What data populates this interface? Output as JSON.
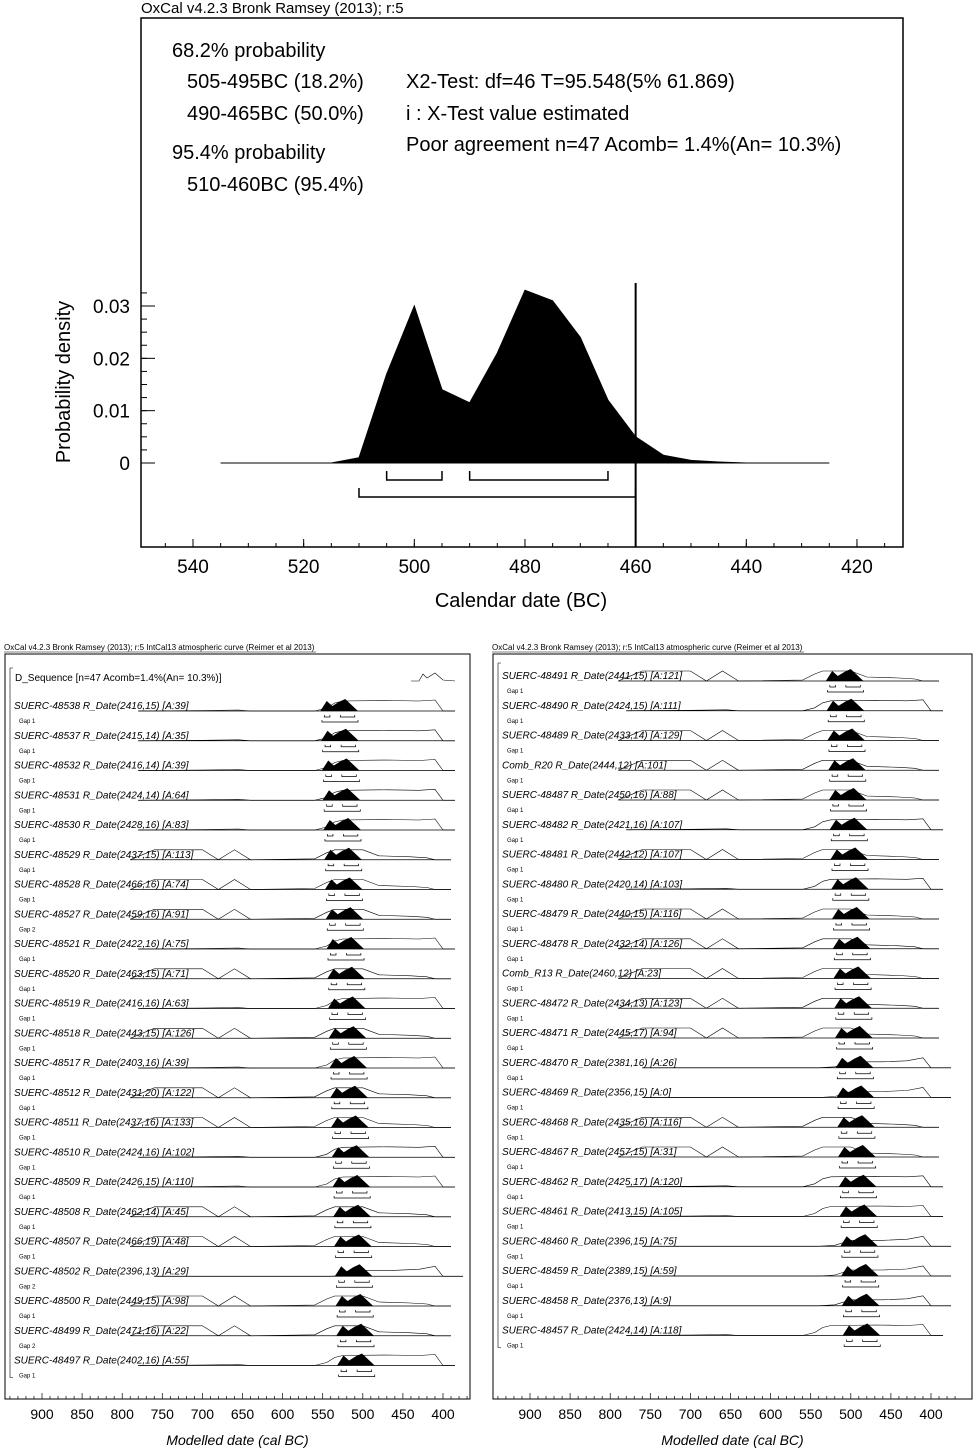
{
  "top_chart": {
    "title": "OxCal v4.2.3 Bronk Ramsey (2013); r:5",
    "prob68_label": "68.2% probability",
    "prob68_ranges": [
      "505-495BC (18.2%)",
      "490-465BC (50.0%)"
    ],
    "prob95_label": "95.4% probability",
    "prob95_ranges": [
      "510-460BC (95.4%)"
    ],
    "stats": [
      "X2-Test: df=46 T=95.548(5% 61.869)",
      "i : X-Test value estimated",
      "Poor agreement n=47 Acomb= 1.4%(An= 10.3%)"
    ],
    "xlabel": "Calendar date (BC)",
    "ylabel": "Probability density",
    "xticks": [
      "540",
      "520",
      "500",
      "480",
      "460",
      "440",
      "420"
    ],
    "yticks": [
      "0",
      "0.01",
      "0.02",
      "0.03"
    ]
  },
  "chart_data": [
    {
      "type": "area",
      "title": "OxCal v4.2.3 Bronk Ramsey (2013); r:5",
      "xlabel": "Calendar date (BC)",
      "ylabel": "Probability density",
      "xlim": [
        550,
        410
      ],
      "ylim": [
        0,
        0.035
      ],
      "x": [
        535,
        515,
        510,
        505,
        500,
        495,
        490,
        485,
        480,
        475,
        470,
        465,
        460,
        455,
        450,
        445,
        440,
        430
      ],
      "y": [
        0,
        0,
        0.001,
        0.017,
        0.03,
        0.014,
        0.0115,
        0.021,
        0.033,
        0.031,
        0.024,
        0.012,
        0.005,
        0.0015,
        0.0005,
        0.0002,
        0,
        0
      ],
      "ranges_68": [
        [
          505,
          495
        ],
        [
          490,
          465
        ]
      ],
      "ranges_95": [
        [
          510,
          460
        ]
      ],
      "marker_line": 460
    },
    {
      "type": "multiplot",
      "panel": "left",
      "header": "OxCal v4.2.3 Bronk Ramsey (2013); r:5 IntCal13 atmospheric curve (Reimer et al 2013)",
      "xlabel": "Modelled date (cal BC)",
      "xticks": [
        "900",
        "850",
        "800",
        "750",
        "700",
        "650",
        "600",
        "550",
        "500",
        "450",
        "400"
      ],
      "sequence_label": "D_Sequence [n=47 Acomb=1.4%(An= 10.3%)]",
      "rows": [
        {
          "label": "SUERC-48538 R_Date(2416,15) [A:39]",
          "gap": "Gap 1"
        },
        {
          "label": "SUERC-48537 R_Date(2415,14) [A:35]",
          "gap": "Gap 1"
        },
        {
          "label": "SUERC-48532 R_Date(2416,14) [A:39]",
          "gap": "Gap 1"
        },
        {
          "label": "SUERC-48531 R_Date(2424,14) [A:64]",
          "gap": "Gap 1"
        },
        {
          "label": "SUERC-48530 R_Date(2428,16) [A:83]",
          "gap": "Gap 1"
        },
        {
          "label": "SUERC-48529 R_Date(2437,15) [A:113]",
          "gap": "Gap 1"
        },
        {
          "label": "SUERC-48528 R_Date(2466,16) [A:74]",
          "gap": "Gap 1"
        },
        {
          "label": "SUERC-48527 R_Date(2459,16) [A:91]",
          "gap": "Gap 2"
        },
        {
          "label": "SUERC-48521 R_Date(2422,16) [A:75]",
          "gap": "Gap 1"
        },
        {
          "label": "SUERC-48520 R_Date(2463,15) [A:71]",
          "gap": "Gap 1"
        },
        {
          "label": "SUERC-48519 R_Date(2416,16) [A:63]",
          "gap": "Gap 1"
        },
        {
          "label": "SUERC-48518 R_Date(2443,15) [A:126]",
          "gap": "Gap 1"
        },
        {
          "label": "SUERC-48517 R_Date(2403,16) [A:39]",
          "gap": "Gap 1"
        },
        {
          "label": "SUERC-48512 R_Date(2431,20) [A:122]",
          "gap": "Gap 1"
        },
        {
          "label": "SUERC-48511 R_Date(2437,16) [A:133]",
          "gap": "Gap 1"
        },
        {
          "label": "SUERC-48510 R_Date(2424,16) [A:102]",
          "gap": "Gap 1"
        },
        {
          "label": "SUERC-48509 R_Date(2426,15) [A:110]",
          "gap": "Gap 1"
        },
        {
          "label": "SUERC-48508 R_Date(2462,14) [A:45]",
          "gap": "Gap 1"
        },
        {
          "label": "SUERC-48507 R_Date(2466,19) [A:48]",
          "gap": "Gap 1"
        },
        {
          "label": "SUERC-48502 R_Date(2396,13) [A:29]",
          "gap": "Gap 2"
        },
        {
          "label": "SUERC-48500 R_Date(2449,15) [A:98]",
          "gap": "Gap 1"
        },
        {
          "label": "SUERC-48499 R_Date(2471,16) [A:22]",
          "gap": "Gap 2"
        },
        {
          "label": "SUERC-48497 R_Date(2402,16) [A:55]",
          "gap": "Gap 1"
        }
      ]
    },
    {
      "type": "multiplot",
      "panel": "right",
      "header": "OxCal v4.2.3 Bronk Ramsey (2013); r:5 IntCal13 atmospheric curve (Reimer et al 2013)",
      "xlabel": "Modelled date (cal BC)",
      "xticks": [
        "900",
        "850",
        "800",
        "750",
        "700",
        "650",
        "600",
        "550",
        "500",
        "450",
        "400"
      ],
      "rows": [
        {
          "label": "SUERC-48491 R_Date(2441,15) [A:121]",
          "gap": "Gap 1"
        },
        {
          "label": "SUERC-48490 R_Date(2424,15) [A:111]",
          "gap": "Gap 1"
        },
        {
          "label": "SUERC-48489 R_Date(2433,14) [A:129]",
          "gap": "Gap 1"
        },
        {
          "label": "Comb_R20 R_Date(2444,12) [A:101]",
          "gap": "Gap 1"
        },
        {
          "label": "SUERC-48487 R_Date(2450,16) [A:88]",
          "gap": "Gap 1"
        },
        {
          "label": "SUERC-48482 R_Date(2421,16) [A:107]",
          "gap": "Gap 1"
        },
        {
          "label": "SUERC-48481 R_Date(2442,12) [A:107]",
          "gap": "Gap 1"
        },
        {
          "label": "SUERC-48480 R_Date(2420,14) [A:103]",
          "gap": "Gap 1"
        },
        {
          "label": "SUERC-48479 R_Date(2440,15) [A:116]",
          "gap": "Gap 1"
        },
        {
          "label": "SUERC-48478 R_Date(2432,14) [A:126]",
          "gap": "Gap 1"
        },
        {
          "label": "Comb_R13 R_Date(2460,12) [A:23]",
          "gap": "Gap 1"
        },
        {
          "label": "SUERC-48472 R_Date(2434,13) [A:123]",
          "gap": "Gap 1"
        },
        {
          "label": "SUERC-48471 R_Date(2445,17) [A:94]",
          "gap": "Gap 1"
        },
        {
          "label": "SUERC-48470 R_Date(2381,16) [A:26]",
          "gap": "Gap 1"
        },
        {
          "label": "SUERC-48469 R_Date(2356,15) [A:0]",
          "gap": "Gap 1"
        },
        {
          "label": "SUERC-48468 R_Date(2435,16) [A:116]",
          "gap": "Gap 1"
        },
        {
          "label": "SUERC-48467 R_Date(2457,15) [A:31]",
          "gap": "Gap 1"
        },
        {
          "label": "SUERC-48462 R_Date(2425,17) [A:120]",
          "gap": "Gap 1"
        },
        {
          "label": "SUERC-48461 R_Date(2413,15) [A:105]",
          "gap": "Gap 1"
        },
        {
          "label": "SUERC-48460 R_Date(2396,15) [A:75]",
          "gap": "Gap 1"
        },
        {
          "label": "SUERC-48459 R_Date(2389,15) [A:59]",
          "gap": "Gap 1"
        },
        {
          "label": "SUERC-48458 R_Date(2376,13) [A:9]",
          "gap": "Gap 1"
        },
        {
          "label": "SUERC-48457 R_Date(2424,14) [A:118]",
          "gap": "Gap 1"
        }
      ]
    }
  ]
}
